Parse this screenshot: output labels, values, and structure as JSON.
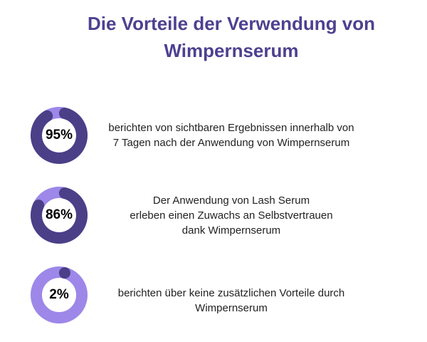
{
  "title": {
    "line1": "Die Vorteile der Verwendung von",
    "line2": "Wimpernserum"
  },
  "colors": {
    "title": "#4d4190",
    "dark": "#4b3f87",
    "light": "#9d87e8"
  },
  "stats": [
    {
      "percent": 95,
      "label": "95%",
      "lines": [
        "berichten von sichtbaren Ergebnissen innerhalb von",
        "7 Tagen nach der Anwendung von Wimpernserum"
      ]
    },
    {
      "percent": 86,
      "label": "86%",
      "lines": [
        "Der Anwendung von Lash Serum",
        "erleben einen Zuwachs an Selbstvertrauen",
        "dank Wimpernserum"
      ]
    },
    {
      "percent": 2,
      "label": "2%",
      "lines": [
        "berichten über keine zusätzlichen Vorteile durch",
        "Wimpernserum"
      ]
    }
  ]
}
